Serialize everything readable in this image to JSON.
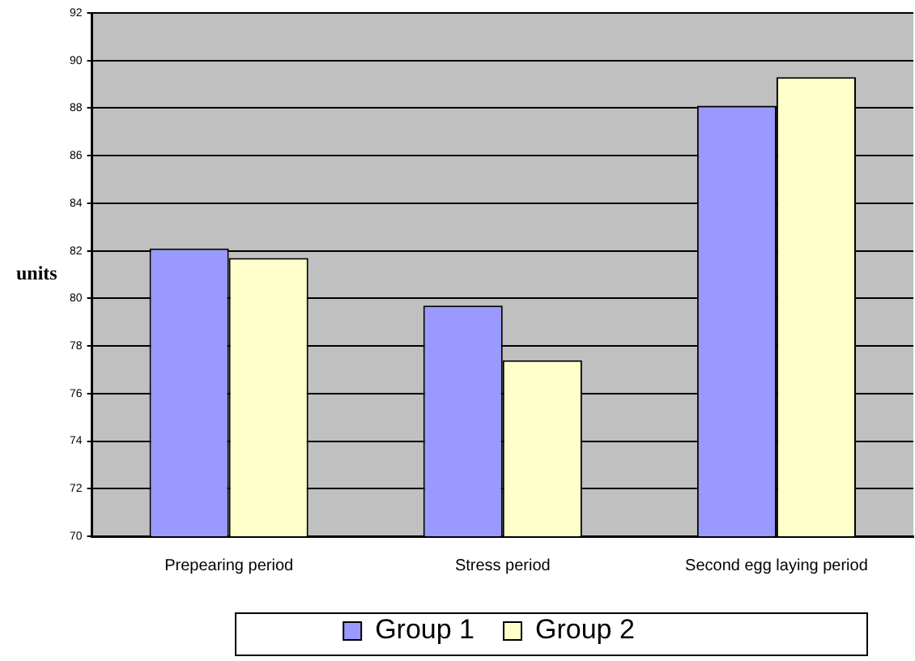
{
  "chart_data": {
    "type": "bar",
    "ylabel": "units",
    "categories": [
      "Prepearing period",
      "Stress period",
      "Second egg laying period"
    ],
    "series": [
      {
        "name": "Group 1",
        "color": "#9999ff",
        "values": [
          82.1,
          79.7,
          88.1
        ]
      },
      {
        "name": "Group 2",
        "color": "#ffffcc",
        "values": [
          81.7,
          77.4,
          89.3
        ]
      }
    ],
    "ylim": [
      70,
      92
    ],
    "yticks": [
      70,
      72,
      74,
      76,
      78,
      80,
      82,
      84,
      86,
      88,
      90,
      92
    ],
    "grid": "y",
    "legend": "bottom"
  }
}
